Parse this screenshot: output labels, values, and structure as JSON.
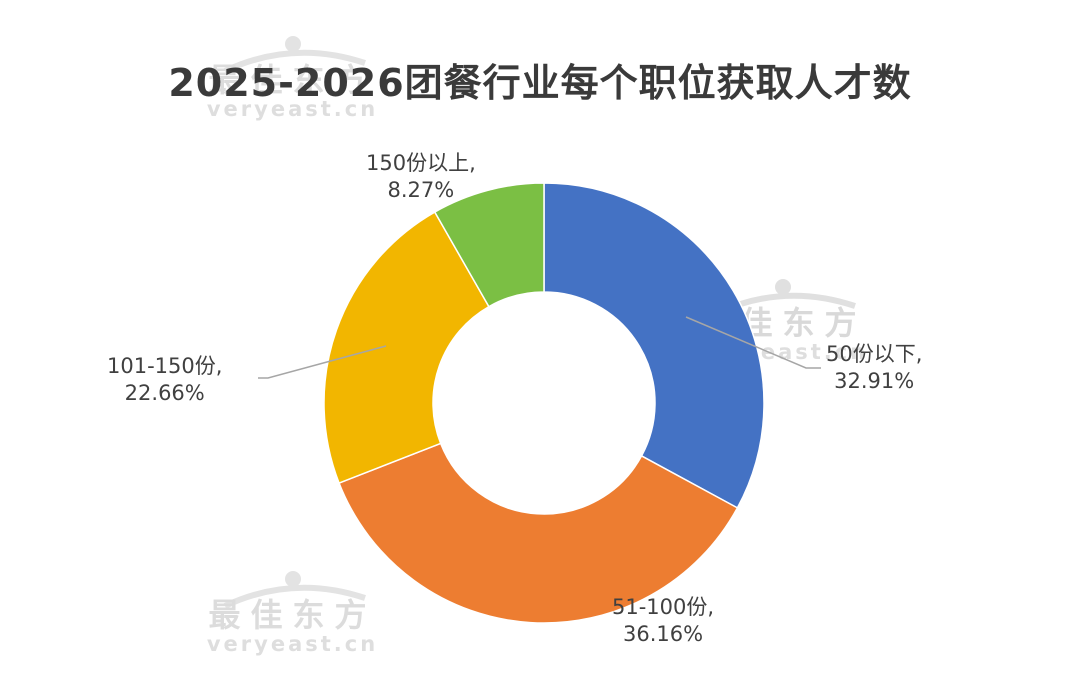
{
  "title": "2025-2026团餐行业每个职位获取人才数",
  "watermark": {
    "cn": "最佳东方",
    "en": "veryeast.cn"
  },
  "chart_data": {
    "type": "pie",
    "variant": "donut",
    "title": "2025-2026团餐行业每个职位获取人才数",
    "legend": "none",
    "slices": [
      {
        "name": "50份以下",
        "value": 32.91,
        "label": "50份以下,",
        "pct": "32.91%",
        "color": "#4472C4"
      },
      {
        "name": "51-100份",
        "value": 36.16,
        "label": "51-100份,",
        "pct": "36.16%",
        "color": "#ED7D31"
      },
      {
        "name": "101-150份",
        "value": 22.66,
        "label": "101-150份,",
        "pct": "22.66%",
        "color": "#F2B600"
      },
      {
        "name": "150份以上",
        "value": 8.27,
        "label": "150份以上,",
        "pct": "8.27%",
        "color": "#7BBF44"
      }
    ]
  }
}
